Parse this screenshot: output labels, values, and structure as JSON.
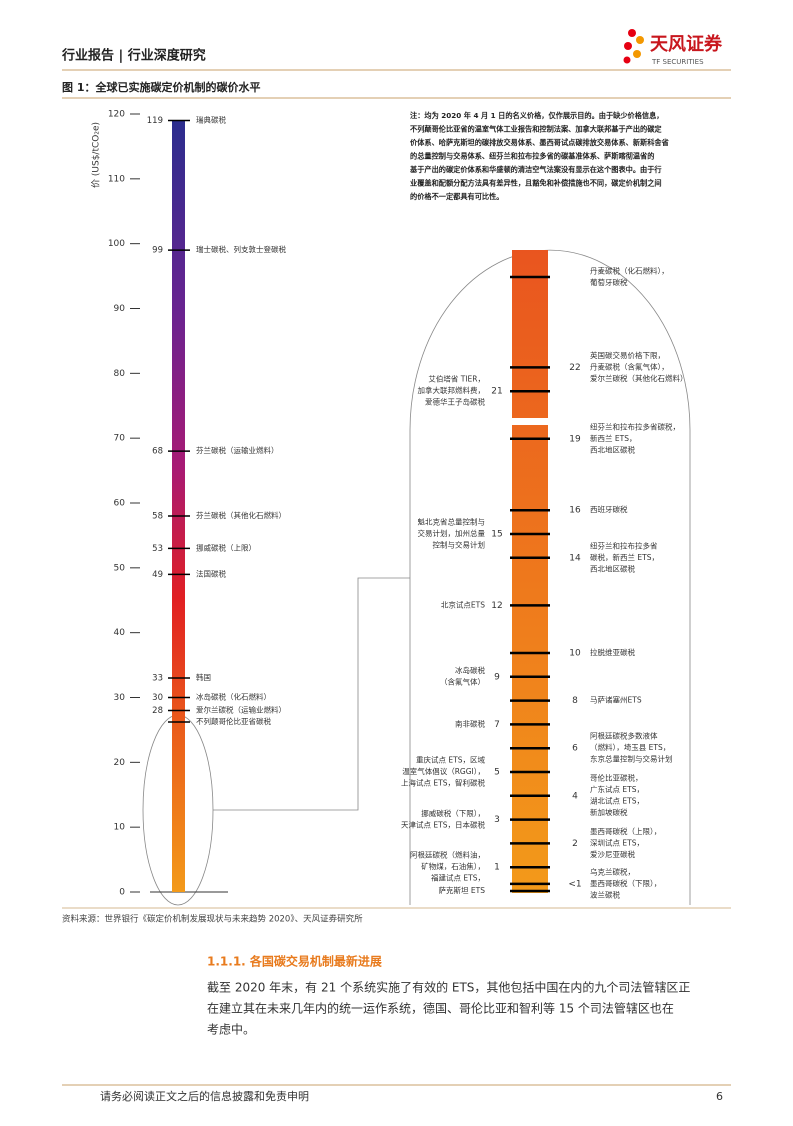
{
  "header": {
    "title": "行业报告 | 行业深度研究",
    "logo": "天风证券",
    "logo_en": "TF SECURITIES"
  },
  "figure": {
    "caption": "图 1：全球已实施碳定价机制的碳价水平",
    "axis_label": "价 (US$/tCO₂e)",
    "ylim": [
      0,
      120
    ],
    "yticks": [
      0,
      10,
      20,
      30,
      40,
      50,
      60,
      70,
      80,
      90,
      100,
      110,
      120
    ],
    "left_annotations": [
      {
        "value": 119,
        "text": "瑞典碳税"
      },
      {
        "value": 99,
        "text": "瑞士碳税、列支敦士登碳税"
      },
      {
        "value": 68,
        "text": "芬兰碳税（运输业燃料）"
      },
      {
        "value": 58,
        "text": "芬兰碳税（其他化石燃料）"
      },
      {
        "value": 53,
        "text": "挪威碳税（上限）"
      },
      {
        "value": 49,
        "text": "法国碳税"
      },
      {
        "value": 33,
        "text": "韩国"
      },
      {
        "value": 30,
        "text": "冰岛碳税（化石燃料）"
      },
      {
        "value": 28,
        "text": "爱尔兰碳税（运输业燃料）"
      }
    ],
    "left_unnumbered": [
      "不列颠哥伦比亚省碳税"
    ],
    "zoom_right": [
      {
        "value": 22,
        "lines": [
          "英国碳交易价格下限，",
          "丹麦碳税（含氟气体），",
          "爱尔兰碳税（其他化石燃料）"
        ]
      },
      {
        "value": 19,
        "lines": [
          "纽芬兰和拉布拉多省碳税，",
          "新西兰 ETS，",
          "西北地区碳税"
        ]
      },
      {
        "value": 16,
        "lines": [
          "西班牙碳税"
        ]
      },
      {
        "value": 14,
        "lines": [
          "纽芬兰和拉布拉多省",
          "碳税，新西兰 ETS，",
          "西北地区碳税"
        ]
      },
      {
        "value": 10,
        "lines": [
          "拉脱维亚碳税"
        ]
      },
      {
        "value": 8,
        "lines": [
          "马萨诸塞州ETS"
        ]
      },
      {
        "value": 6,
        "lines": [
          "阿根廷碳税多数液体",
          "（燃料），埼玉县 ETS，",
          "东京总量控制与交易计划"
        ]
      },
      {
        "value": 4,
        "lines": [
          "哥伦比亚碳税，",
          "广东试点 ETS，",
          "湖北试点 ETS，",
          "新加坡碳税"
        ]
      },
      {
        "value": 2,
        "lines": [
          "墨西哥碳税（上限），",
          "深圳试点 ETS，",
          "爱沙尼亚碳税"
        ]
      },
      {
        "value": {
          "value": 0.3,
          "label": "<1"
        },
        "lines": [
          "乌克兰碳税，",
          "墨西哥碳税（下限），",
          "波兰碳税"
        ]
      }
    ],
    "zoom_left": [
      {
        "value": 21,
        "lines": [
          "艾伯塔省 TIER，",
          "加拿大联邦燃料费，",
          "爱德华王子岛碳税"
        ]
      },
      {
        "value": 15,
        "lines": [
          "魁北克省总量控制与",
          "交易计划，加州总量",
          "控制与交易计划"
        ]
      },
      {
        "value": 12,
        "lines": [
          "北京试点ETS"
        ]
      },
      {
        "value": 9,
        "lines": [
          "冰岛碳税",
          "（含氟气体）"
        ]
      },
      {
        "value": 7,
        "lines": [
          "南非碳税"
        ]
      },
      {
        "value": 5,
        "lines": [
          "重庆试点 ETS，区域",
          "温室气体倡议（RGGI），",
          "上海试点 ETS，智利碳税"
        ]
      },
      {
        "value": 3,
        "lines": [
          "挪威碳税（下限），",
          "天津试点 ETS，日本碳税"
        ]
      },
      {
        "value": 1,
        "lines": [
          "阿根廷碳税（燃料油，",
          "矿物煤，石油焦），",
          "福建试点 ETS，"
        ]
      }
    ],
    "zoom_unnumbered": [
      [
        "丹麦碳税（化石燃料），",
        "葡萄牙碳税"
      ],
      [
        "萨克斯坦 ETS"
      ]
    ],
    "note": [
      "注：均为 2020 年 4 月 1 日的名义价格，仅作展示目的。由于缺少价格信息，",
      "不列颠哥伦比亚省的温室气体工业报告和控制法案、加拿大联邦基于产出的碳定",
      "价体系、哈萨克斯坦的碳排放交易体系、墨西哥试点碳排放交易体系、新斯科舍省",
      "的总量控制与交易体系、纽芬兰和拉布拉多省的碳基准体系、萨斯喀彻温省的",
      "基于产出的碳定价体系和华盛顿的清洁空气法案没有显示在这个图表中。由于行",
      "业覆盖和配额分配方法具有差异性，且豁免和补偿措施也不同，碳定价机制之间",
      "的价格不一定都具有可比性。"
    ],
    "source": "资料来源：世界银行《碳定价机制发展现状与未来趋势 2020》、天风证券研究所"
  },
  "section": {
    "heading": "1.1.1. 各国碳交易机制最新进展",
    "paragraph": [
      "截至 2020 年末，有 21 个系统实施了有效的 ETS，其他包括中国在内的九个司法管辖区正",
      "在建立其在未来几年内的统一运作系统，德国、哥伦比亚和智利等 15 个司法管辖区也在",
      "考虑中。"
    ]
  },
  "footer": {
    "disclaimer": "请务必阅读正文之后的信息披露和免责申明",
    "page": "6"
  }
}
